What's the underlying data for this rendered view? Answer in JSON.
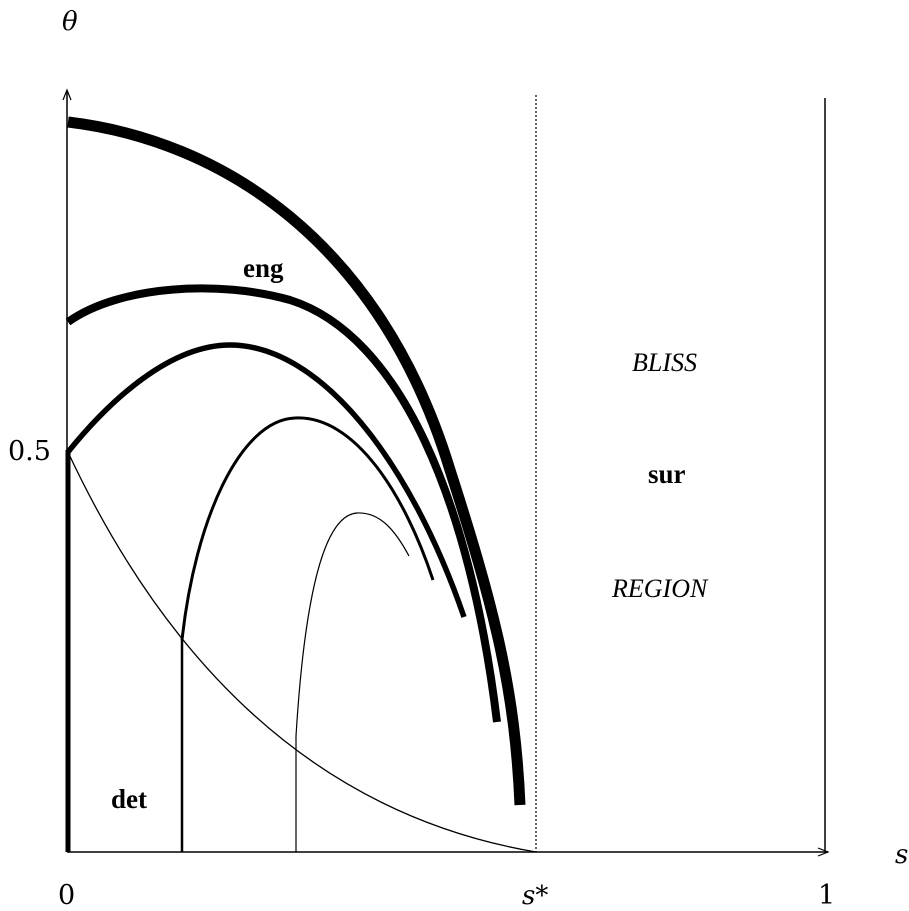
{
  "axes": {
    "y_label": "θ",
    "x_label": "s",
    "x_tick_0": "0",
    "x_tick_sstar": "s*",
    "x_tick_1": "1",
    "y_tick_half": "0.5"
  },
  "labels": {
    "eng": "eng",
    "det": "det",
    "sur": "sur",
    "bliss": "BLISS",
    "region": "REGION"
  },
  "colors": {
    "ink": "#000000",
    "background": "#ffffff"
  }
}
